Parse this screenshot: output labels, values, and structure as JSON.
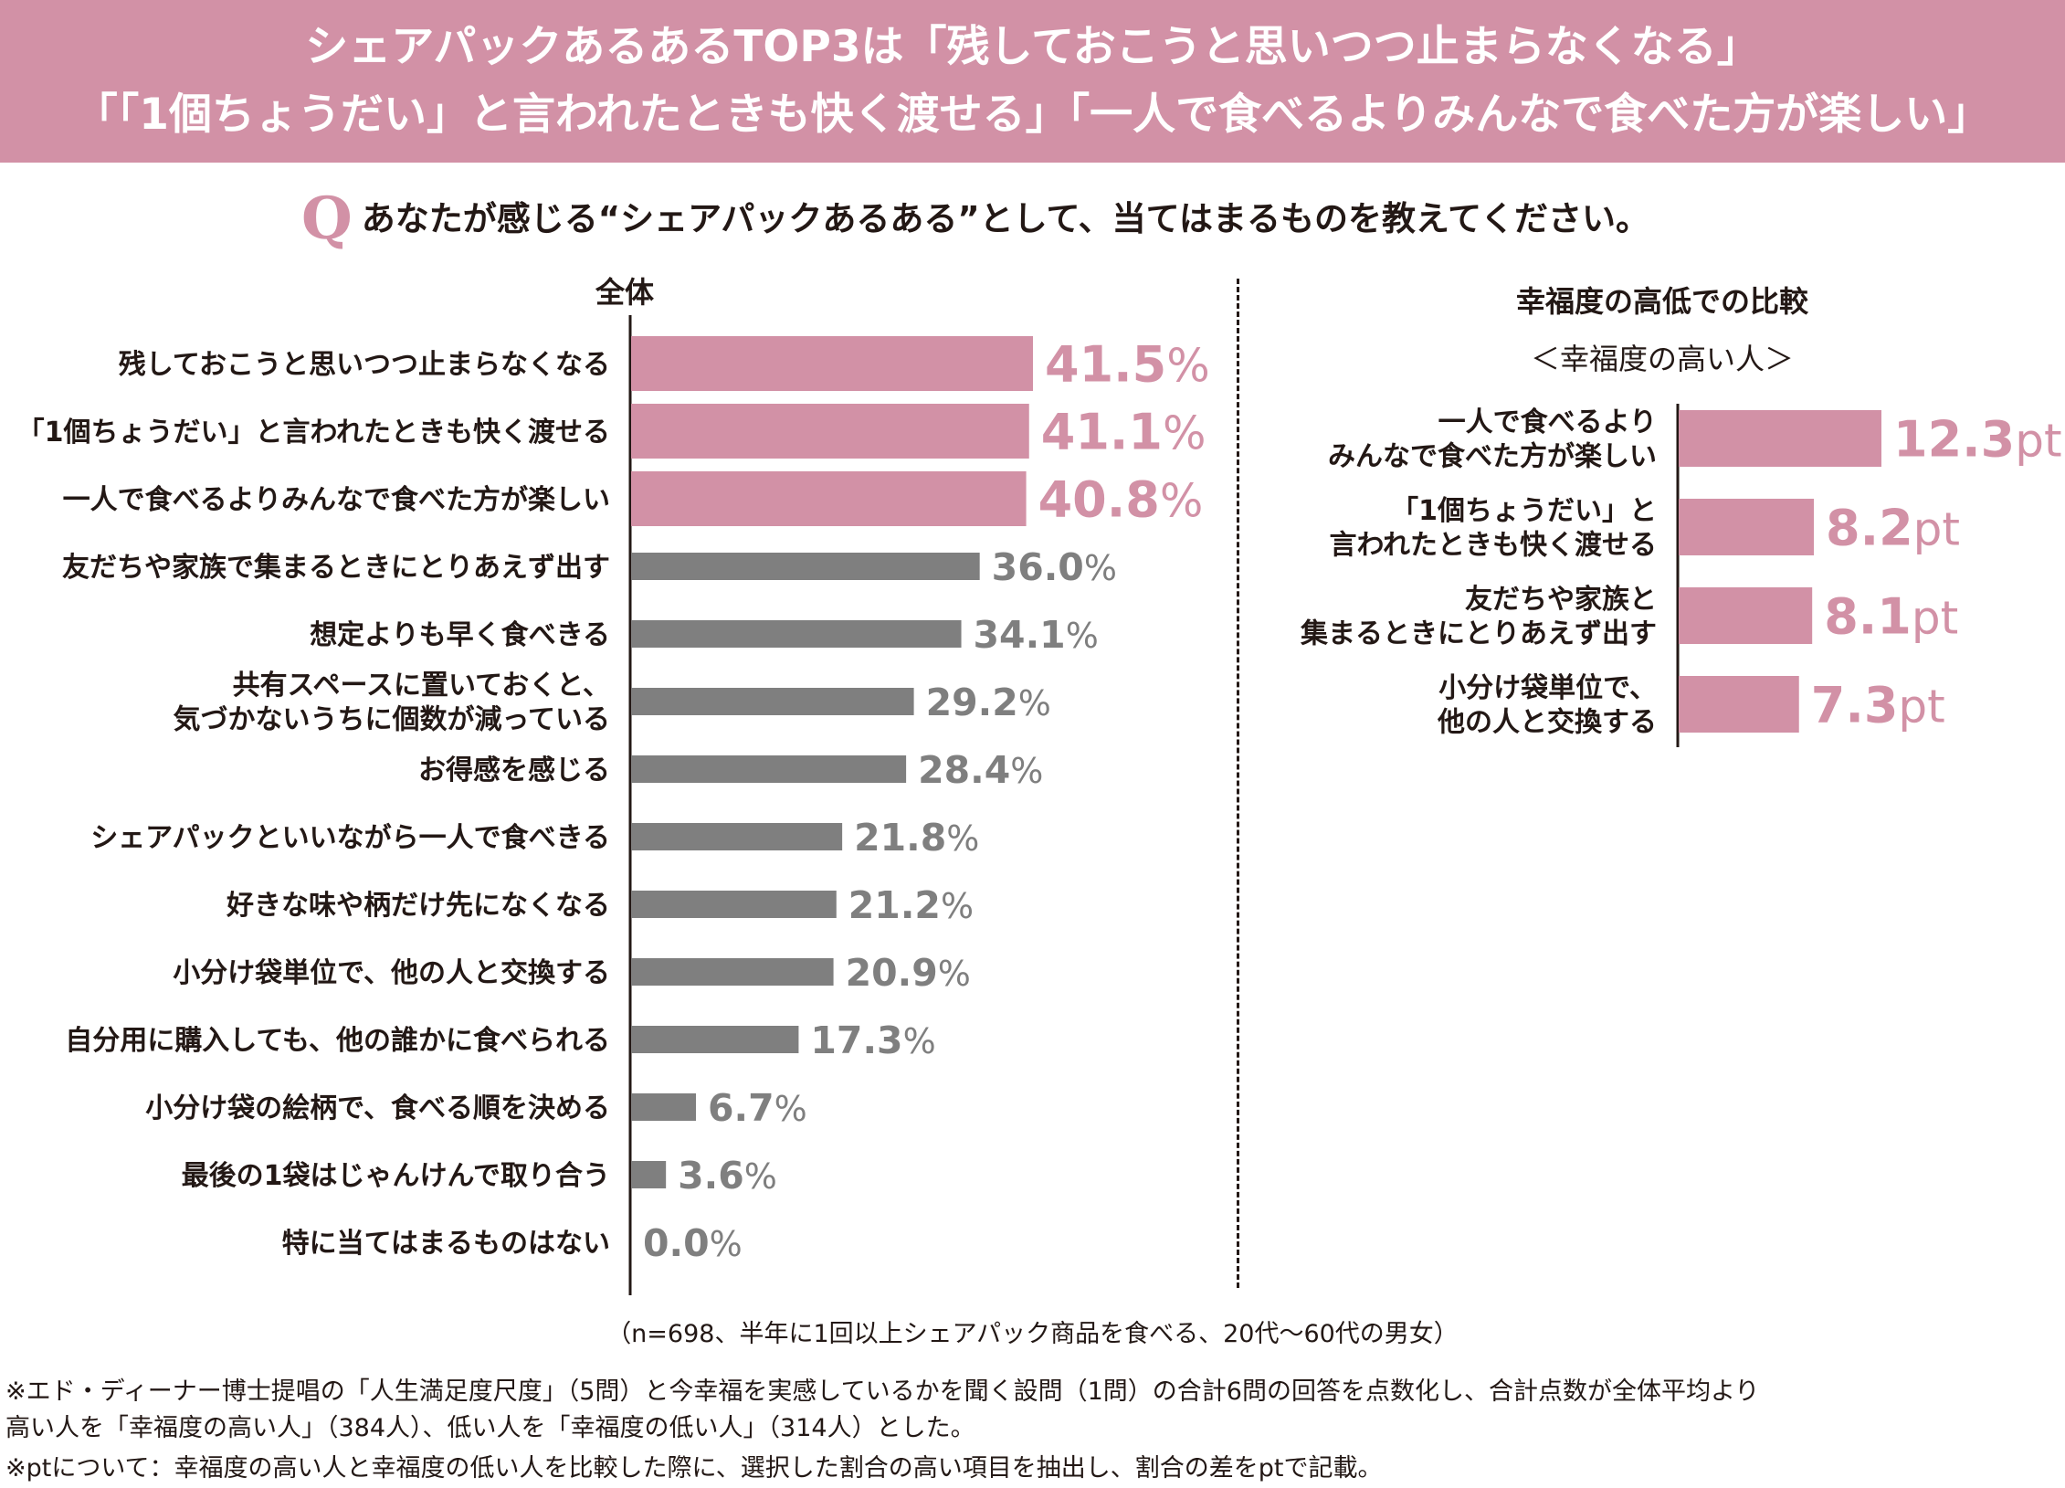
{
  "header": {
    "line1": "シェアパックあるあるTOP3は「残しておこうと思いつつ止まらなくなる」",
    "line2": "「「1個ちょうだい」と言われたときも快く渡せる」「一人で食べるよりみんなで食べた方が楽しい」"
  },
  "question": {
    "mark": "Q",
    "text": "あなたが感じる“シェアパックあるある”として、当てはまるものを教えてください。"
  },
  "colors": {
    "accent": "#d291a6",
    "gray": "#7f7f7f",
    "text": "#231815"
  },
  "chart_data": [
    {
      "type": "bar",
      "orientation": "horizontal",
      "title": "全体",
      "unit": "%",
      "xlim": [
        0,
        45
      ],
      "categories": [
        "残しておこうと思いつつ止まらなくなる",
        "「1個ちょうだい」と言われたときも快く渡せる",
        "一人で食べるよりみんなで食べた方が楽しい",
        "友だちや家族で集まるときにとりあえず出す",
        "想定よりも早く食べきる",
        "共有スペースに置いておくと、\n気づかないうちに個数が減っている",
        "お得感を感じる",
        "シェアパックといいながら一人で食べきる",
        "好きな味や柄だけ先になくなる",
        "小分け袋単位で、他の人と交換する",
        "自分用に購入しても、他の誰かに食べられる",
        "小分け袋の絵柄で、食べる順を決める",
        "最後の1袋はじゃんけんで取り合う",
        "特に当てはまるものはない"
      ],
      "values": [
        41.5,
        41.1,
        40.8,
        36.0,
        34.1,
        29.2,
        28.4,
        21.8,
        21.2,
        20.9,
        17.3,
        6.7,
        3.6,
        0.0
      ],
      "labels": [
        "41.5",
        "41.1",
        "40.8",
        "36.0",
        "34.1",
        "29.2",
        "28.4",
        "21.8",
        "21.2",
        "20.9",
        "17.3",
        "6.7",
        "3.6",
        "0.0"
      ],
      "highlight_top": 3
    },
    {
      "type": "bar",
      "orientation": "horizontal",
      "title": "幸福度の高低での比較",
      "subtitle": "＜幸福度の高い人＞",
      "unit": "pt",
      "xlim": [
        0,
        15
      ],
      "categories": [
        "一人で食べるより\nみんなで食べた方が楽しい",
        "「1個ちょうだい」と\n言われたときも快く渡せる",
        "友だちや家族と\n集まるときにとりあえず出す",
        "小分け袋単位で、\n他の人と交換する"
      ],
      "values": [
        12.3,
        8.2,
        8.1,
        7.3
      ],
      "labels": [
        "12.3",
        "8.2",
        "8.1",
        "7.3"
      ]
    }
  ],
  "notes": {
    "sample": "（n=698、半年に1回以上シェアパック商品を食べる、20代～60代の男女）",
    "note1a": "※エド・ディーナー博士提唱の「人生満足度尺度」（5問）と今幸福を実感しているかを聞く設問（1問）の合計6問の回答を点数化し、合計点数が全体平均より",
    "note1b": "高い人を「幸福度の高い人」（384人）、低い人を「幸福度の低い人」（314人）とした。",
    "note2": "※ptについて：幸福度の高い人と幸福度の低い人を比較した際に、選択した割合の高い項目を抽出し、割合の差をptで記載。"
  }
}
